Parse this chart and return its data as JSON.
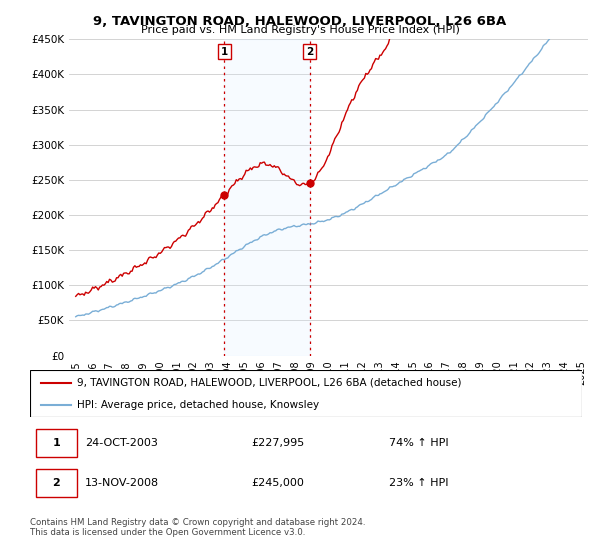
{
  "title": "9, TAVINGTON ROAD, HALEWOOD, LIVERPOOL, L26 6BA",
  "subtitle": "Price paid vs. HM Land Registry's House Price Index (HPI)",
  "legend_line1": "9, TAVINGTON ROAD, HALEWOOD, LIVERPOOL, L26 6BA (detached house)",
  "legend_line2": "HPI: Average price, detached house, Knowsley",
  "footnote": "Contains HM Land Registry data © Crown copyright and database right 2024.\nThis data is licensed under the Open Government Licence v3.0.",
  "transaction1_label": "1",
  "transaction1_date": "24-OCT-2003",
  "transaction1_price": "£227,995",
  "transaction1_hpi": "74% ↑ HPI",
  "transaction2_label": "2",
  "transaction2_date": "13-NOV-2008",
  "transaction2_price": "£245,000",
  "transaction2_hpi": "23% ↑ HPI",
  "ylim": [
    0,
    450000
  ],
  "yticks": [
    0,
    50000,
    100000,
    150000,
    200000,
    250000,
    300000,
    350000,
    400000,
    450000
  ],
  "ytick_labels": [
    "£0",
    "£50K",
    "£100K",
    "£150K",
    "£200K",
    "£250K",
    "£300K",
    "£350K",
    "£400K",
    "£450K"
  ],
  "hpi_color": "#7aaed6",
  "price_color": "#cc0000",
  "vline_color": "#cc0000",
  "shade_color": "#ddeeff",
  "background_color": "#ffffff",
  "grid_color": "#cccccc",
  "transaction1_x": 2003.82,
  "transaction2_x": 2008.88,
  "transaction1_price_val": 227995,
  "transaction2_price_val": 245000,
  "xlim_left": 1994.6,
  "xlim_right": 2025.4
}
